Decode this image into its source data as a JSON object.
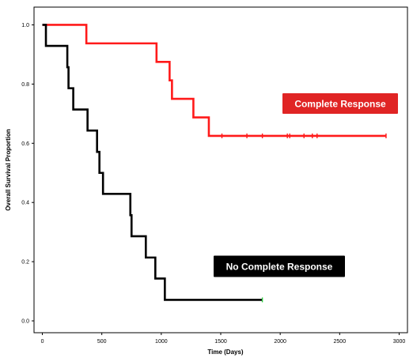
{
  "chart_data": {
    "type": "line",
    "subtype": "kaplan-meier step",
    "title": "",
    "xlabel": "Time (Days)",
    "ylabel": "Overall Survival Proportion",
    "xlim": [
      -70,
      3070
    ],
    "ylim": [
      -0.04,
      1.06
    ],
    "x_ticks": [
      0,
      500,
      1000,
      1500,
      2000,
      2500,
      3000
    ],
    "y_ticks": [
      0.0,
      0.2,
      0.4,
      0.6,
      0.8,
      1.0
    ],
    "x_tick_labels": [
      "0",
      "500",
      "1000",
      "1500",
      "2000",
      "2500",
      "3000"
    ],
    "y_tick_labels": [
      "0.0",
      "0.2",
      "0.4",
      "0.6",
      "0.8",
      "1.0"
    ],
    "grid": false,
    "series": [
      {
        "name": "Complete Response",
        "color": "#ff1a1a",
        "label_box_color": "#e02424",
        "steps": [
          {
            "x": 0,
            "y": 1.0
          },
          {
            "x": 370,
            "y": 0.9375
          },
          {
            "x": 960,
            "y": 0.875
          },
          {
            "x": 1070,
            "y": 0.8125
          },
          {
            "x": 1090,
            "y": 0.75
          },
          {
            "x": 1270,
            "y": 0.6875
          },
          {
            "x": 1400,
            "y": 0.625
          }
        ],
        "end_x": 2890,
        "censored_x": [
          1510,
          1720,
          1850,
          2060,
          2080,
          2200,
          2270,
          2310,
          2890
        ]
      },
      {
        "name": "No Complete Response",
        "color": "#000000",
        "label_box_color": "#000000",
        "steps": [
          {
            "x": 0,
            "y": 1.0
          },
          {
            "x": 30,
            "y": 0.929
          },
          {
            "x": 210,
            "y": 0.857
          },
          {
            "x": 220,
            "y": 0.786
          },
          {
            "x": 260,
            "y": 0.714
          },
          {
            "x": 380,
            "y": 0.643
          },
          {
            "x": 460,
            "y": 0.571
          },
          {
            "x": 480,
            "y": 0.5
          },
          {
            "x": 510,
            "y": 0.429
          },
          {
            "x": 740,
            "y": 0.357
          },
          {
            "x": 750,
            "y": 0.286
          },
          {
            "x": 870,
            "y": 0.214
          },
          {
            "x": 950,
            "y": 0.143
          },
          {
            "x": 1030,
            "y": 0.071
          }
        ],
        "end_x": 1850,
        "censored_x": [
          1850
        ],
        "censor_color": "#2ecc40"
      }
    ]
  }
}
